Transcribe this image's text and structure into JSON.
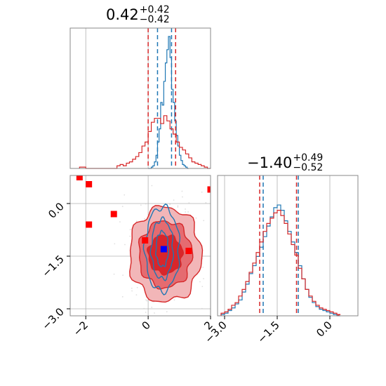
{
  "chart_data": [
    {
      "type": "histogram",
      "panel": "marginal-x",
      "title": {
        "value": "0.42",
        "plus": "+0.42",
        "minus": "−0.42"
      },
      "xlim": [
        -2.5,
        2
      ],
      "grid": true,
      "series": [
        {
          "color": "#1f77b4",
          "quantiles": [
            0.3,
            0.75
          ],
          "bins_x": [
            0.0,
            0.05,
            0.1,
            0.15,
            0.2,
            0.25,
            0.3,
            0.35,
            0.4,
            0.45,
            0.5,
            0.55,
            0.6,
            0.65,
            0.7,
            0.75,
            0.8,
            0.85,
            0.9,
            0.95,
            1.0,
            1.05,
            1.1,
            1.15,
            1.2,
            1.25,
            1.3
          ],
          "heights": [
            0,
            0,
            0.01,
            0.02,
            0.05,
            0.1,
            0.2,
            0.3,
            0.5,
            0.48,
            0.66,
            0.8,
            0.9,
            1.0,
            0.84,
            0.6,
            0.5,
            0.36,
            0.25,
            0.17,
            0.1,
            0.06,
            0.03,
            0.02,
            0.01,
            0
          ]
        },
        {
          "color": "#d62728",
          "quantiles": [
            0.0,
            0.88
          ],
          "bins_x": [
            -2.2,
            -2.1,
            -2.0,
            -1.9,
            -1.8,
            -1.7,
            -1.6,
            -1.5,
            -1.4,
            -1.3,
            -1.2,
            -1.1,
            -1.0,
            -0.9,
            -0.8,
            -0.7,
            -0.6,
            -0.5,
            -0.4,
            -0.3,
            -0.2,
            -0.1,
            0.0,
            0.1,
            0.2,
            0.3,
            0.4,
            0.5,
            0.6,
            0.7,
            0.8,
            0.9,
            1.0,
            1.1,
            1.2,
            1.3,
            1.4,
            1.5,
            1.6,
            1.7,
            1.8,
            1.9,
            2.0
          ],
          "heights": [
            0.01,
            0.01,
            0,
            0,
            0,
            0,
            0,
            0,
            0,
            0,
            0,
            0,
            0.02,
            0.03,
            0.02,
            0.04,
            0.05,
            0.07,
            0.09,
            0.12,
            0.17,
            0.2,
            0.28,
            0.35,
            0.38,
            0.38,
            0.34,
            0.4,
            0.36,
            0.3,
            0.26,
            0.2,
            0.16,
            0.14,
            0.11,
            0.08,
            0.05,
            0.04,
            0.03,
            0.02,
            0.01,
            0
          ]
        }
      ]
    },
    {
      "type": "contour-scatter",
      "panel": "joint",
      "xlim": [
        -2.5,
        2
      ],
      "ylim": [
        -3.2,
        0.8
      ],
      "x_ticks": [
        "−2",
        "0",
        "2"
      ],
      "y_ticks": [
        "−3.0",
        "−1.5",
        "0.0"
      ],
      "grid": true,
      "red_squares": [
        [
          -2.2,
          0.75
        ],
        [
          -1.9,
          0.55
        ],
        [
          -1.9,
          -0.6
        ],
        [
          -1.1,
          -0.3
        ],
        [
          -0.1,
          -1.05
        ],
        [
          1.3,
          -1.35
        ],
        [
          2.0,
          0.4
        ]
      ],
      "blue_square": [
        0.5,
        -1.3
      ],
      "red_contours": [
        {
          "cx": 0.55,
          "cy": -1.45,
          "rx": [
            0.55,
            0.85,
            1.15
          ],
          "ry": [
            0.55,
            0.95,
            1.35
          ]
        }
      ],
      "blue_contours": [
        {
          "cx": 0.45,
          "cy": -1.3,
          "rx": [
            0.2,
            0.35,
            0.55
          ],
          "ry": [
            0.5,
            0.85,
            1.2
          ]
        }
      ]
    },
    {
      "type": "histogram",
      "panel": "marginal-y",
      "title": {
        "value": "−1.40",
        "plus": "+0.49",
        "minus": "−0.52"
      },
      "xlim": [
        -3.2,
        0.8
      ],
      "x_ticks": [
        "−3.0",
        "−1.5",
        "0.0"
      ],
      "grid": true,
      "series": [
        {
          "color": "#1f77b4",
          "quantiles": [
            -1.9,
            -0.9
          ],
          "bins_x": [
            -3.1,
            -3.0,
            -2.9,
            -2.8,
            -2.7,
            -2.6,
            -2.5,
            -2.4,
            -2.3,
            -2.2,
            -2.1,
            -2.0,
            -1.9,
            -1.8,
            -1.7,
            -1.6,
            -1.5,
            -1.4,
            -1.3,
            -1.2,
            -1.1,
            -1.0,
            -0.9,
            -0.8,
            -0.7,
            -0.6,
            -0.5,
            -0.4,
            -0.3,
            -0.2,
            -0.1,
            0.0,
            0.1,
            0.2
          ],
          "heights": [
            0.01,
            0.02,
            0.04,
            0.06,
            0.09,
            0.12,
            0.18,
            0.24,
            0.32,
            0.38,
            0.45,
            0.52,
            0.6,
            0.68,
            0.75,
            0.82,
            0.84,
            0.8,
            0.72,
            0.64,
            0.56,
            0.48,
            0.38,
            0.28,
            0.2,
            0.14,
            0.1,
            0.07,
            0.05,
            0.04,
            0.03,
            0.02,
            0.01,
            0
          ]
        },
        {
          "color": "#d62728",
          "quantiles": [
            -2.0,
            -0.95
          ],
          "bins_x": [
            -3.1,
            -3.0,
            -2.9,
            -2.8,
            -2.7,
            -2.6,
            -2.5,
            -2.4,
            -2.3,
            -2.2,
            -2.1,
            -2.0,
            -1.9,
            -1.8,
            -1.7,
            -1.6,
            -1.5,
            -1.4,
            -1.3,
            -1.2,
            -1.1,
            -1.0,
            -0.9,
            -0.8,
            -0.7,
            -0.6,
            -0.5,
            -0.4,
            -0.3,
            -0.2,
            -0.1,
            0.0,
            0.1,
            0.2
          ],
          "heights": [
            0.02,
            0.03,
            0.05,
            0.08,
            0.1,
            0.15,
            0.2,
            0.26,
            0.33,
            0.4,
            0.48,
            0.56,
            0.64,
            0.7,
            0.74,
            0.78,
            0.8,
            0.76,
            0.7,
            0.62,
            0.54,
            0.46,
            0.36,
            0.28,
            0.2,
            0.15,
            0.11,
            0.08,
            0.06,
            0.05,
            0.04,
            0.03,
            0.02,
            0.01
          ]
        }
      ]
    }
  ]
}
